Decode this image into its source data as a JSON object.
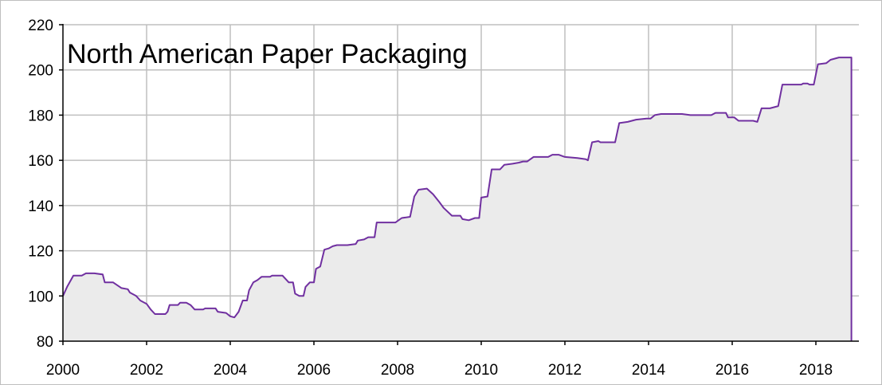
{
  "chart_data": {
    "type": "area",
    "title": "North American Paper Packaging",
    "xlabel": "",
    "ylabel": "",
    "xlim": [
      2000,
      2018.9
    ],
    "ylim": [
      80,
      220
    ],
    "grid": true,
    "legend": "none",
    "x_ticks": [
      2000,
      2002,
      2004,
      2006,
      2008,
      2010,
      2012,
      2014,
      2016,
      2018
    ],
    "y_ticks": [
      80,
      100,
      120,
      140,
      160,
      180,
      200,
      220
    ],
    "colors": {
      "line": "#7030a0",
      "fill": "#ebebeb",
      "grid": "#bfbfbf",
      "axis": "#000000"
    },
    "series": [
      {
        "points": [
          [
            2000.0,
            100
          ],
          [
            2000.1,
            104
          ],
          [
            2000.25,
            109
          ],
          [
            2000.45,
            109
          ],
          [
            2000.55,
            110
          ],
          [
            2000.75,
            110
          ],
          [
            2000.95,
            109.5
          ],
          [
            2001.0,
            106
          ],
          [
            2001.2,
            106
          ],
          [
            2001.4,
            103.5
          ],
          [
            2001.55,
            103
          ],
          [
            2001.6,
            101.5
          ],
          [
            2001.75,
            100
          ],
          [
            2001.85,
            98
          ],
          [
            2002.0,
            96.5
          ],
          [
            2002.1,
            94
          ],
          [
            2002.2,
            92
          ],
          [
            2002.45,
            92
          ],
          [
            2002.5,
            93
          ],
          [
            2002.55,
            96
          ],
          [
            2002.75,
            96
          ],
          [
            2002.8,
            97
          ],
          [
            2002.95,
            97
          ],
          [
            2003.05,
            96
          ],
          [
            2003.15,
            94
          ],
          [
            2003.35,
            94
          ],
          [
            2003.4,
            94.5
          ],
          [
            2003.65,
            94.5
          ],
          [
            2003.7,
            93
          ],
          [
            2003.9,
            92.5
          ],
          [
            2004.0,
            91
          ],
          [
            2004.1,
            90.5
          ],
          [
            2004.2,
            93
          ],
          [
            2004.3,
            98
          ],
          [
            2004.4,
            98
          ],
          [
            2004.45,
            102.5
          ],
          [
            2004.55,
            106
          ],
          [
            2004.65,
            107
          ],
          [
            2004.75,
            108.5
          ],
          [
            2004.95,
            108.5
          ],
          [
            2005.0,
            109
          ],
          [
            2005.25,
            109
          ],
          [
            2005.4,
            106
          ],
          [
            2005.5,
            106
          ],
          [
            2005.55,
            101
          ],
          [
            2005.65,
            100
          ],
          [
            2005.75,
            100
          ],
          [
            2005.8,
            104
          ],
          [
            2005.9,
            106
          ],
          [
            2006.0,
            106
          ],
          [
            2006.05,
            112
          ],
          [
            2006.15,
            113
          ],
          [
            2006.25,
            120.5
          ],
          [
            2006.35,
            121
          ],
          [
            2006.45,
            122
          ],
          [
            2006.55,
            122.5
          ],
          [
            2006.8,
            122.5
          ],
          [
            2007.0,
            123
          ],
          [
            2007.05,
            124.5
          ],
          [
            2007.2,
            125
          ],
          [
            2007.3,
            126
          ],
          [
            2007.45,
            126
          ],
          [
            2007.5,
            132.5
          ],
          [
            2007.95,
            132.5
          ],
          [
            2008.1,
            134.5
          ],
          [
            2008.3,
            135
          ],
          [
            2008.4,
            144
          ],
          [
            2008.5,
            147
          ],
          [
            2008.7,
            147.5
          ],
          [
            2008.85,
            145
          ],
          [
            2009.0,
            141.5
          ],
          [
            2009.1,
            139
          ],
          [
            2009.3,
            135.5
          ],
          [
            2009.5,
            135.5
          ],
          [
            2009.55,
            134
          ],
          [
            2009.7,
            133.5
          ],
          [
            2009.85,
            134.5
          ],
          [
            2009.95,
            134.5
          ],
          [
            2010.0,
            143.5
          ],
          [
            2010.15,
            144
          ],
          [
            2010.25,
            156
          ],
          [
            2010.45,
            156
          ],
          [
            2010.55,
            158
          ],
          [
            2010.75,
            158.5
          ],
          [
            2010.9,
            159
          ],
          [
            2011.0,
            159.5
          ],
          [
            2011.1,
            159.5
          ],
          [
            2011.25,
            161.5
          ],
          [
            2011.6,
            161.5
          ],
          [
            2011.7,
            162.5
          ],
          [
            2011.85,
            162.5
          ],
          [
            2012.0,
            161.5
          ],
          [
            2012.3,
            161
          ],
          [
            2012.5,
            160.5
          ],
          [
            2012.55,
            160
          ],
          [
            2012.65,
            168
          ],
          [
            2012.8,
            168.5
          ],
          [
            2012.85,
            168
          ],
          [
            2013.2,
            168
          ],
          [
            2013.3,
            176.5
          ],
          [
            2013.5,
            177
          ],
          [
            2013.7,
            178
          ],
          [
            2013.95,
            178.5
          ],
          [
            2014.05,
            178.5
          ],
          [
            2014.15,
            180
          ],
          [
            2014.3,
            180.5
          ],
          [
            2014.8,
            180.5
          ],
          [
            2015.0,
            180
          ],
          [
            2015.5,
            180
          ],
          [
            2015.6,
            181
          ],
          [
            2015.85,
            181
          ],
          [
            2015.9,
            179
          ],
          [
            2016.05,
            179
          ],
          [
            2016.15,
            177.5
          ],
          [
            2016.5,
            177.5
          ],
          [
            2016.6,
            177
          ],
          [
            2016.7,
            183
          ],
          [
            2016.9,
            183
          ],
          [
            2017.0,
            183.5
          ],
          [
            2017.1,
            184
          ],
          [
            2017.2,
            193.5
          ],
          [
            2017.65,
            193.5
          ],
          [
            2017.7,
            194
          ],
          [
            2017.8,
            194
          ],
          [
            2017.85,
            193.5
          ],
          [
            2017.95,
            193.5
          ],
          [
            2018.05,
            202.5
          ],
          [
            2018.25,
            203
          ],
          [
            2018.35,
            204.5
          ],
          [
            2018.55,
            205.5
          ],
          [
            2018.85,
            205.5
          ]
        ]
      }
    ]
  }
}
